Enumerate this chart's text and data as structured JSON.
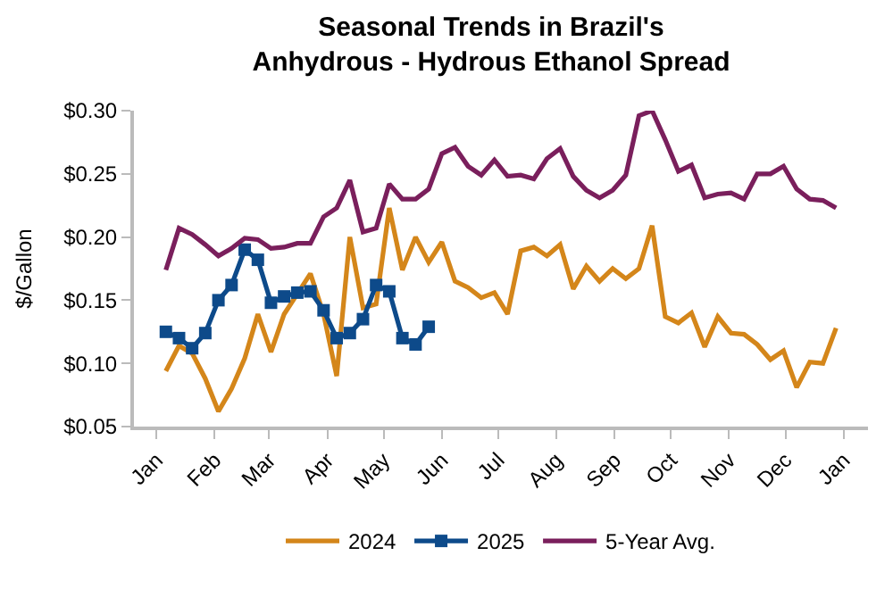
{
  "chart_data": {
    "type": "line",
    "title": "Seasonal Trends in Brazil's\nAnhydrous - Hydrous Ethanol Spread",
    "ylabel": "$/Gallon",
    "x": [
      "2024-01-06",
      "2024-01-13",
      "2024-01-20",
      "2024-01-27",
      "2024-02-03",
      "2024-02-10",
      "2024-02-17",
      "2024-02-24",
      "2024-03-02",
      "2024-03-09",
      "2024-03-16",
      "2024-03-23",
      "2024-03-30",
      "2024-04-06",
      "2024-04-13",
      "2024-04-20",
      "2024-04-27",
      "2024-05-04",
      "2024-05-11",
      "2024-05-18",
      "2024-05-25",
      "2024-06-01",
      "2024-06-08",
      "2024-06-15",
      "2024-06-22",
      "2024-06-29",
      "2024-07-06",
      "2024-07-13",
      "2024-07-20",
      "2024-07-27",
      "2024-08-03",
      "2024-08-10",
      "2024-08-17",
      "2024-08-24",
      "2024-08-31",
      "2024-09-07",
      "2024-09-14",
      "2024-09-21",
      "2024-09-28",
      "2024-10-05",
      "2024-10-12",
      "2024-10-19",
      "2024-10-26",
      "2024-11-02",
      "2024-11-09",
      "2024-11-16",
      "2024-11-23",
      "2024-11-30",
      "2024-12-07",
      "2024-12-14",
      "2024-12-21",
      "2024-12-28"
    ],
    "series": [
      {
        "name": "2024",
        "color": "#d4861a",
        "marker": "none",
        "values": [
          0.094,
          0.114,
          0.108,
          0.088,
          0.062,
          0.08,
          0.104,
          0.139,
          0.109,
          0.139,
          0.155,
          0.171,
          0.139,
          0.09,
          0.2,
          0.144,
          0.147,
          0.223,
          0.174,
          0.2,
          0.18,
          0.196,
          0.165,
          0.16,
          0.152,
          0.156,
          0.139,
          0.189,
          0.192,
          0.185,
          0.194,
          0.159,
          0.177,
          0.165,
          0.175,
          0.167,
          0.175,
          0.209,
          0.137,
          0.132,
          0.14,
          0.113,
          0.137,
          0.124,
          0.123,
          0.115,
          0.103,
          0.11,
          0.081,
          0.101,
          0.1,
          0.128
        ]
      },
      {
        "name": "2025",
        "color": "#0d4a8a",
        "marker": "square",
        "x": [
          "2024-01-06",
          "2024-01-13",
          "2024-01-20",
          "2024-01-27",
          "2024-02-03",
          "2024-02-10",
          "2024-02-17",
          "2024-02-24",
          "2024-03-02",
          "2024-03-09",
          "2024-03-16",
          "2024-03-23",
          "2024-03-30",
          "2024-04-06",
          "2024-04-13",
          "2024-04-20",
          "2024-04-27",
          "2024-05-04",
          "2024-05-11",
          "2024-05-18",
          "2024-05-25"
        ],
        "values": [
          0.125,
          0.12,
          0.112,
          0.124,
          0.15,
          0.162,
          0.19,
          0.182,
          0.148,
          0.153,
          0.156,
          0.157,
          0.142,
          0.12,
          0.124,
          0.135,
          0.162,
          0.157,
          0.12,
          0.115,
          0.129
        ]
      },
      {
        "name": "5-Year Avg.",
        "color": "#7a1f5c",
        "marker": "none",
        "values": [
          0.174,
          0.207,
          0.202,
          0.194,
          0.185,
          0.191,
          0.199,
          0.198,
          0.191,
          0.192,
          0.195,
          0.195,
          0.216,
          0.223,
          0.245,
          0.204,
          0.207,
          0.242,
          0.23,
          0.23,
          0.238,
          0.266,
          0.271,
          0.256,
          0.249,
          0.261,
          0.248,
          0.249,
          0.246,
          0.262,
          0.27,
          0.248,
          0.237,
          0.231,
          0.237,
          0.249,
          0.296,
          0.3,
          0.277,
          0.252,
          0.257,
          0.231,
          0.234,
          0.235,
          0.23,
          0.25,
          0.25,
          0.256,
          0.238,
          0.23,
          0.229,
          0.223
        ]
      }
    ],
    "xlim": [
      "2023-12-20",
      "2025-01-14"
    ],
    "xticks": [
      {
        "value": "2024-01-01",
        "label": "Jan"
      },
      {
        "value": "2024-02-01",
        "label": "Feb"
      },
      {
        "value": "2024-03-01",
        "label": "Mar"
      },
      {
        "value": "2024-04-01",
        "label": "Apr"
      },
      {
        "value": "2024-05-01",
        "label": "May"
      },
      {
        "value": "2024-06-01",
        "label": "Jun"
      },
      {
        "value": "2024-07-01",
        "label": "Jul"
      },
      {
        "value": "2024-08-01",
        "label": "Aug"
      },
      {
        "value": "2024-09-01",
        "label": "Sep"
      },
      {
        "value": "2024-10-01",
        "label": "Oct"
      },
      {
        "value": "2024-11-01",
        "label": "Nov"
      },
      {
        "value": "2024-12-01",
        "label": "Dec"
      },
      {
        "value": "2025-01-01",
        "label": "Jan"
      }
    ],
    "ylim": [
      0.05,
      0.3
    ],
    "yticks": [
      {
        "value": 0.05,
        "label": "$0.05"
      },
      {
        "value": 0.1,
        "label": "$0.10"
      },
      {
        "value": 0.15,
        "label": "$0.15"
      },
      {
        "value": 0.2,
        "label": "$0.20"
      },
      {
        "value": 0.25,
        "label": "$0.25"
      },
      {
        "value": 0.3,
        "label": "$0.30"
      }
    ],
    "legend": "bottom",
    "line_style": "solid"
  }
}
